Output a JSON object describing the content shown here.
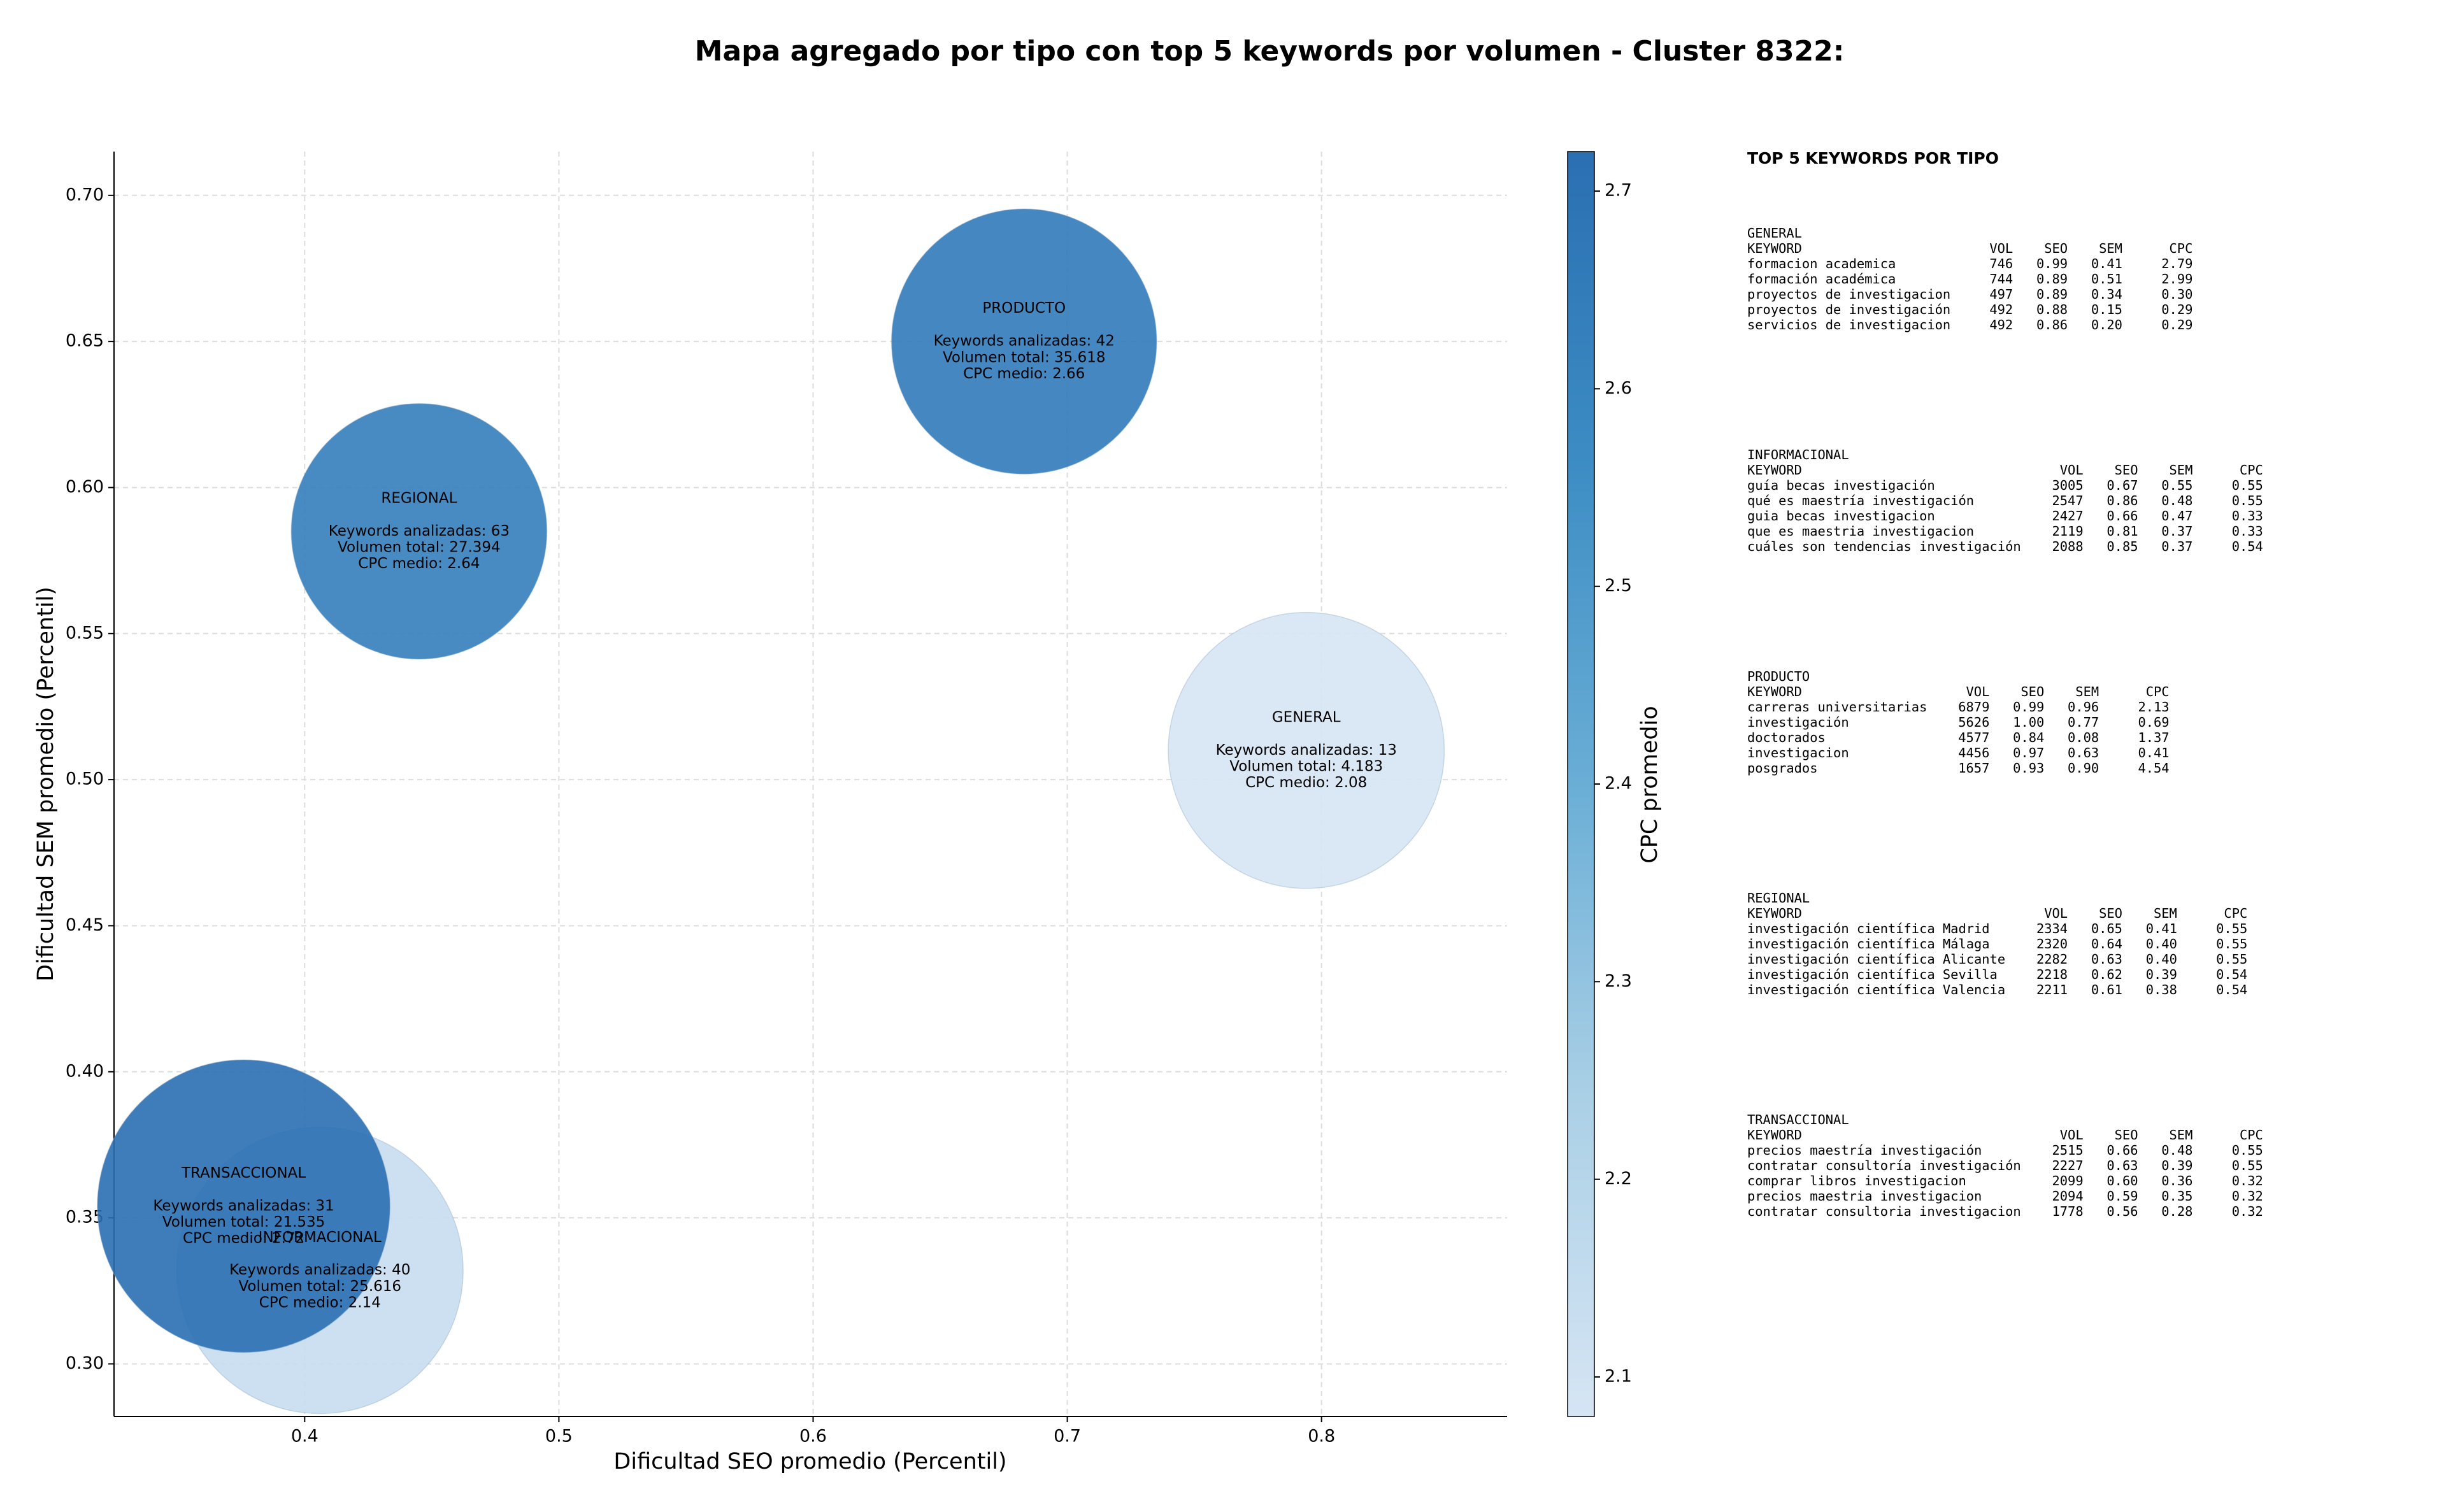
{
  "chart_data": {
    "type": "bubble",
    "title": "Mapa agregado por tipo con top 5 keywords por volumen - Cluster 8322:",
    "x_label": "Dificultad SEO promedio (Percentil)",
    "y_label": "Dificultad SEM promedio (Percentil)",
    "xlim": [
      0.325,
      0.873
    ],
    "ylim": [
      0.282,
      0.715
    ],
    "xticks": [
      0.4,
      0.5,
      0.6,
      0.7,
      0.8
    ],
    "yticks": [
      {
        "value": 0.3,
        "label": "0.30"
      },
      0.35,
      {
        "value": 0.4,
        "label": "0.40"
      },
      0.45,
      {
        "value": 0.5,
        "label": "0.50"
      },
      0.55,
      {
        "value": 0.6,
        "label": "0.60"
      },
      0.65,
      {
        "value": 0.7,
        "label": "0.70"
      }
    ],
    "grid": true,
    "labels": [
      "GENERAL",
      "INFORMACIONAL",
      "PRODUCTO",
      "REGIONAL",
      "TRANSACCIONAL"
    ],
    "x": [
      0.794,
      0.406,
      0.683,
      0.445,
      0.376
    ],
    "y": [
      0.51,
      0.332,
      0.65,
      0.585,
      0.354
    ],
    "sizes": [
      16900,
      18200,
      15600,
      14500,
      19000
    ],
    "color_values": [
      2.08,
      2.14,
      2.66,
      2.64,
      2.72
    ],
    "annotations": [
      [
        "Keywords analizadas: 13",
        "Volumen total: 4.183",
        "CPC medio: 2.08"
      ],
      [
        "Keywords analizadas: 40",
        "Volumen total: 25.616",
        "CPC medio: 2.14"
      ],
      [
        "Keywords analizadas: 42",
        "Volumen total: 35.618",
        "CPC medio: 2.66"
      ],
      [
        "Keywords analizadas: 63",
        "Volumen total: 27.394",
        "CPC medio: 2.64"
      ],
      [
        "Keywords analizadas: 31",
        "Volumen total: 21.535",
        "CPC medio: 2.72"
      ]
    ],
    "colorbar": {
      "label": "CPC promedio",
      "lim": [
        2.08,
        2.72
      ],
      "ticks": [
        2.1,
        2.2,
        2.3,
        2.4,
        2.5,
        2.6,
        2.7
      ],
      "colors": [
        "#d6e5f4",
        "#abd0e6",
        "#6aaed6",
        "#3d8dc4",
        "#2a6fb2"
      ]
    }
  },
  "keyword_panel": {
    "title": "TOP 5 KEYWORDS POR TIPO",
    "header": [
      "KEYWORD",
      "VOL",
      "SEO",
      "SEM",
      "CPC"
    ],
    "sections": [
      {
        "name": "GENERAL",
        "rows": [
          [
            "formacion academica",
            "746",
            "0.99",
            "0.41",
            "2.79"
          ],
          [
            "formación académica",
            "744",
            "0.89",
            "0.51",
            "2.99"
          ],
          [
            "proyectos de investigacion",
            "497",
            "0.89",
            "0.34",
            "0.30"
          ],
          [
            "proyectos de investigación",
            "492",
            "0.88",
            "0.15",
            "0.29"
          ],
          [
            "servicios de investigacion",
            "492",
            "0.86",
            "0.20",
            "0.29"
          ]
        ]
      },
      {
        "name": "INFORMACIONAL",
        "rows": [
          [
            "guía becas investigación",
            "3005",
            "0.67",
            "0.55",
            "0.55"
          ],
          [
            "qué es maestría investigación",
            "2547",
            "0.86",
            "0.48",
            "0.55"
          ],
          [
            "guia becas investigacion",
            "2427",
            "0.66",
            "0.47",
            "0.33"
          ],
          [
            "que es maestria investigacion",
            "2119",
            "0.81",
            "0.37",
            "0.33"
          ],
          [
            "cuáles son tendencias investigación",
            "2088",
            "0.85",
            "0.37",
            "0.54"
          ]
        ]
      },
      {
        "name": "PRODUCTO",
        "rows": [
          [
            "carreras universitarias",
            "6879",
            "0.99",
            "0.96",
            "2.13"
          ],
          [
            "investigación",
            "5626",
            "1.00",
            "0.77",
            "0.69"
          ],
          [
            "doctorados",
            "4577",
            "0.84",
            "0.08",
            "1.37"
          ],
          [
            "investigacion",
            "4456",
            "0.97",
            "0.63",
            "0.41"
          ],
          [
            "posgrados",
            "1657",
            "0.93",
            "0.90",
            "4.54"
          ]
        ]
      },
      {
        "name": "REGIONAL",
        "rows": [
          [
            "investigación científica Madrid",
            "2334",
            "0.65",
            "0.41",
            "0.55"
          ],
          [
            "investigación científica Málaga",
            "2320",
            "0.64",
            "0.40",
            "0.55"
          ],
          [
            "investigación científica Alicante",
            "2282",
            "0.63",
            "0.40",
            "0.55"
          ],
          [
            "investigación científica Sevilla",
            "2218",
            "0.62",
            "0.39",
            "0.54"
          ],
          [
            "investigación científica Valencia",
            "2211",
            "0.61",
            "0.38",
            "0.54"
          ]
        ]
      },
      {
        "name": "TRANSACCIONAL",
        "rows": [
          [
            "precios maestría investigación",
            "2515",
            "0.66",
            "0.48",
            "0.55"
          ],
          [
            "contratar consultoría investigación",
            "2227",
            "0.63",
            "0.39",
            "0.55"
          ],
          [
            "comprar libros investigacion",
            "2099",
            "0.60",
            "0.36",
            "0.32"
          ],
          [
            "precios maestria investigacion",
            "2094",
            "0.59",
            "0.35",
            "0.32"
          ],
          [
            "contratar consultoria investigacion",
            "1778",
            "0.56",
            "0.28",
            "0.32"
          ]
        ]
      }
    ]
  }
}
